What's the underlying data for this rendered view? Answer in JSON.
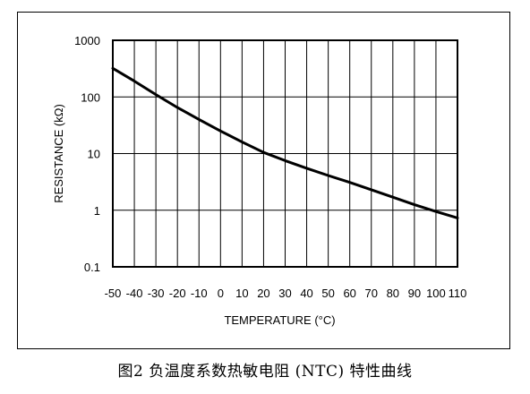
{
  "chart_data": {
    "type": "line",
    "title": "",
    "xlabel": "TEMPERATURE (°C)",
    "ylabel": "RESISTANCE (kΩ)",
    "x_scale": "linear",
    "y_scale": "log",
    "xlim": [
      -50,
      110
    ],
    "ylim": [
      0.1,
      1000
    ],
    "grid": true,
    "x_ticks": [
      "-50",
      "-40",
      "-30",
      "-20",
      "-10",
      "0",
      "10",
      "20",
      "30",
      "40",
      "50",
      "60",
      "70",
      "80",
      "90",
      "100",
      "110"
    ],
    "y_ticks": [
      "0.1",
      "1",
      "10",
      "100",
      "1000"
    ],
    "series": [
      {
        "color": "#000000",
        "x": [
          -50,
          -40,
          -30,
          -20,
          -10,
          0,
          10,
          20,
          30,
          40,
          50,
          60,
          70,
          80,
          90,
          100,
          110
        ],
        "y": [
          320,
          190,
          110,
          65,
          40,
          25,
          16,
          10.5,
          7.5,
          5.5,
          4.1,
          3.1,
          2.3,
          1.7,
          1.25,
          0.95,
          0.73
        ]
      }
    ]
  },
  "caption": "图2 负温度系数热敏电阻 (NTC) 特性曲线"
}
